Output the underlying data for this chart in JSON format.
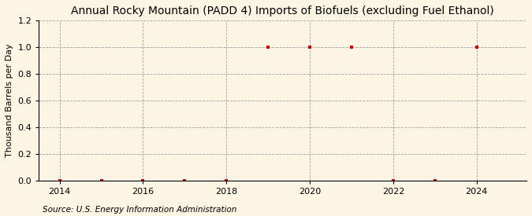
{
  "title": "Annual Rocky Mountain (PADD 4) Imports of Biofuels (excluding Fuel Ethanol)",
  "ylabel": "Thousand Barrels per Day",
  "source": "Source: U.S. Energy Information Administration",
  "years": [
    2014,
    2015,
    2016,
    2017,
    2018,
    2019,
    2020,
    2021,
    2022,
    2023,
    2024
  ],
  "values": [
    0.0,
    0.0,
    0.0,
    0.0,
    0.0,
    1.0,
    1.0,
    1.0,
    0.0,
    0.0,
    1.0
  ],
  "xlim": [
    2013.5,
    2025.2
  ],
  "ylim": [
    0.0,
    1.2
  ],
  "yticks": [
    0.0,
    0.2,
    0.4,
    0.6,
    0.8,
    1.0,
    1.2
  ],
  "xticks": [
    2014,
    2016,
    2018,
    2020,
    2022,
    2024
  ],
  "marker_color": "#cc0000",
  "marker": "s",
  "marker_size": 3,
  "grid_color": "#999999",
  "background_color": "#fdf5e4",
  "title_fontsize": 10,
  "label_fontsize": 8,
  "tick_fontsize": 8,
  "source_fontsize": 7.5
}
